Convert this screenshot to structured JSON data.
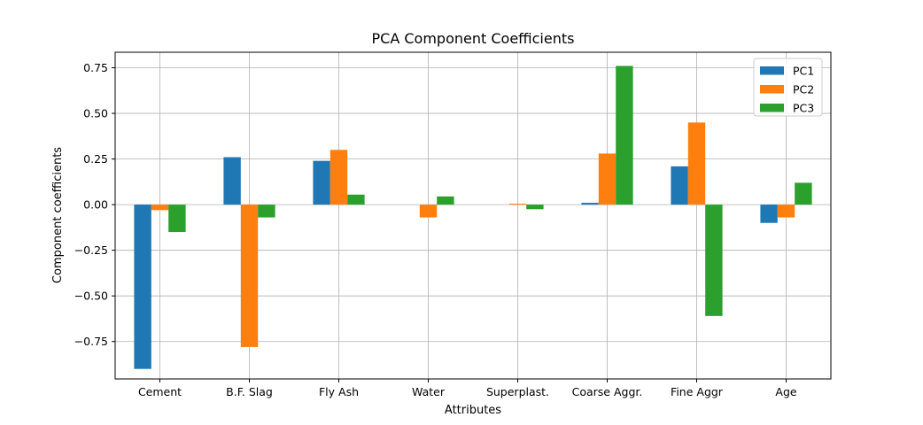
{
  "chart_data": {
    "type": "bar",
    "title": "PCA Component Coefficients",
    "xlabel": "Attributes",
    "ylabel": "Component coefficients",
    "categories": [
      "Cement",
      "B.F. Slag",
      "Fly Ash",
      "Water",
      "Superplast.",
      "Coarse Aggr.",
      "Fine Aggr",
      "Age"
    ],
    "series": [
      {
        "name": "PC1",
        "color": "#1f77b4",
        "values": [
          -0.9,
          0.26,
          0.24,
          0.0,
          0.0,
          0.01,
          0.21,
          -0.1
        ]
      },
      {
        "name": "PC2",
        "color": "#ff7f0e",
        "values": [
          -0.03,
          -0.78,
          0.3,
          -0.07,
          0.005,
          0.28,
          0.45,
          -0.07
        ]
      },
      {
        "name": "PC3",
        "color": "#2ca02c",
        "values": [
          -0.15,
          -0.07,
          0.055,
          0.045,
          -0.025,
          0.76,
          -0.61,
          0.12
        ]
      }
    ],
    "ylim": [
      -0.955,
      0.835
    ],
    "yticks": [
      -0.75,
      -0.5,
      -0.25,
      0.0,
      0.25,
      0.5,
      0.75
    ],
    "ytick_labels": [
      "−0.75",
      "−0.50",
      "−0.25",
      "0.00",
      "0.25",
      "0.50",
      "0.75"
    ],
    "grid": true,
    "legend_position": "top-right"
  }
}
